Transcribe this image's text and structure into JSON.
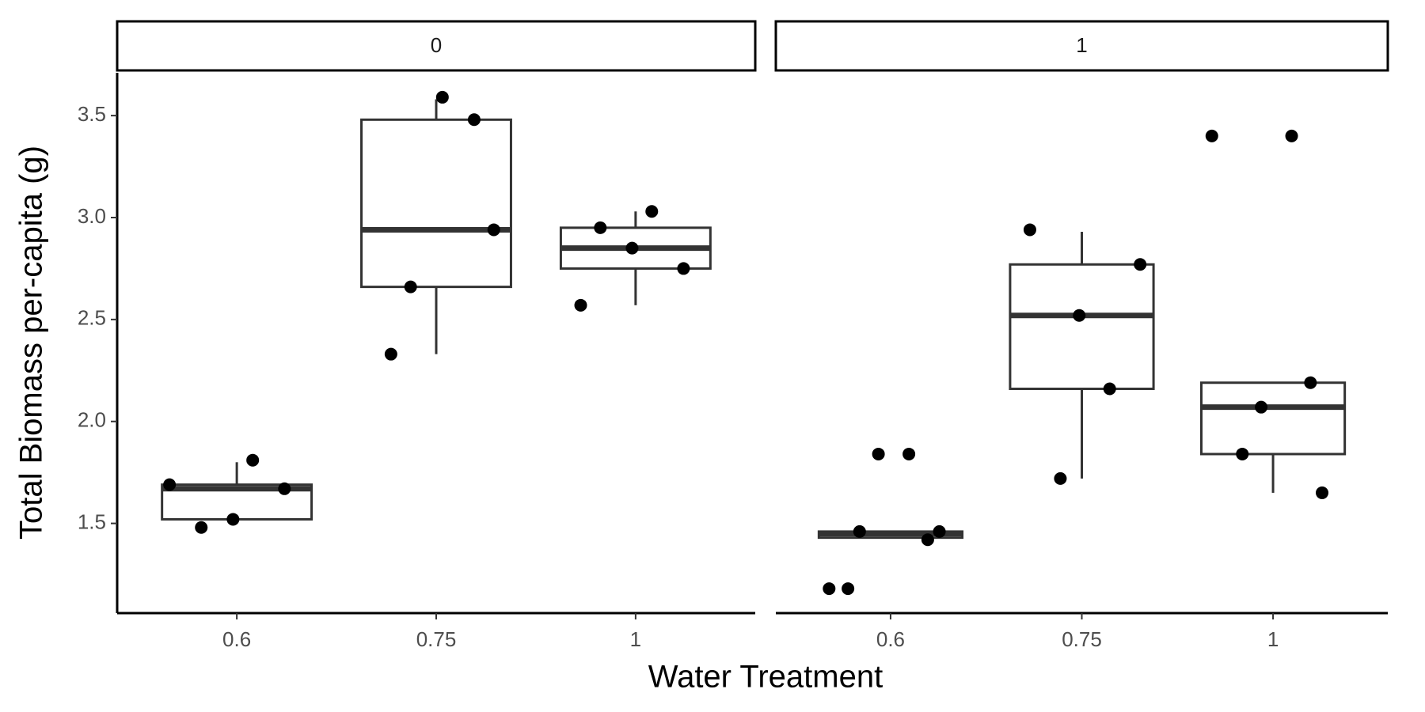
{
  "chart_data": {
    "type": "boxplot",
    "x_label": "Water Treatment",
    "y_label": "Total Biomass per-capita (g)",
    "categories": [
      "0.6",
      "0.75",
      "1"
    ],
    "ylim": [
      1.06,
      3.71
    ],
    "yticks": [
      1.5,
      {
        "value": 2,
        "label": "2.0"
      },
      2.5,
      {
        "value": 3,
        "label": "3.0"
      },
      3.5
    ],
    "box_color": "#333333",
    "point_color": "#000000",
    "facets": [
      {
        "label": "0",
        "boxes": [
          {
            "low": 1.52,
            "q1": 1.52,
            "median": 1.67,
            "q3": 1.69,
            "high": 1.8,
            "points": [
              1.69,
              1.81,
              1.48,
              1.67,
              1.52
            ]
          },
          {
            "low": 2.33,
            "q1": 2.66,
            "median": 2.94,
            "q3": 3.48,
            "high": 3.58,
            "points": [
              2.66,
              2.94,
              3.59,
              2.33,
              3.48
            ]
          },
          {
            "low": 2.57,
            "q1": 2.75,
            "median": 2.85,
            "q3": 2.95,
            "high": 3.03,
            "points": [
              3.03,
              2.95,
              2.75,
              2.85,
              2.57
            ]
          }
        ]
      },
      {
        "label": "1",
        "boxes": [
          {
            "low": 1.43,
            "q1": 1.43,
            "median": 1.45,
            "q3": 1.46,
            "high": 1.46,
            "points": [
              1.18,
              1.42,
              1.84,
              1.18,
              1.84,
              1.46,
              1.46
            ]
          },
          {
            "low": 1.72,
            "q1": 2.16,
            "median": 2.52,
            "q3": 2.77,
            "high": 2.93,
            "points": [
              2.52,
              2.94,
              2.16,
              1.72,
              2.77
            ]
          },
          {
            "low": 1.65,
            "q1": 1.84,
            "median": 2.07,
            "q3": 2.19,
            "high": 2.19,
            "points": [
              2.19,
              2.07,
              3.4,
              3.4,
              1.84,
              1.65
            ]
          }
        ]
      }
    ]
  }
}
